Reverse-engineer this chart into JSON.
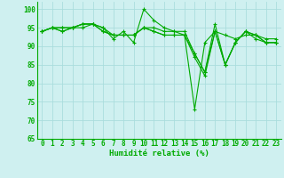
{
  "xlabel": "Humidité relative (%)",
  "xlim": [
    -0.5,
    23.5
  ],
  "ylim": [
    65,
    102
  ],
  "yticks": [
    65,
    70,
    75,
    80,
    85,
    90,
    95,
    100
  ],
  "xticks": [
    0,
    1,
    2,
    3,
    4,
    5,
    6,
    7,
    8,
    9,
    10,
    11,
    12,
    13,
    14,
    15,
    16,
    17,
    18,
    19,
    20,
    21,
    22,
    23
  ],
  "background_color": "#cff0f0",
  "grid_color": "#aadddd",
  "line_color": "#00aa00",
  "series": [
    [
      94,
      95,
      94,
      95,
      96,
      96,
      95,
      92,
      94,
      91,
      100,
      97,
      95,
      94,
      94,
      88,
      83,
      96,
      85,
      91,
      94,
      93,
      91,
      91
    ],
    [
      94,
      95,
      95,
      95,
      95,
      96,
      94,
      93,
      93,
      93,
      95,
      94,
      93,
      93,
      93,
      87,
      82,
      94,
      93,
      92,
      93,
      93,
      92,
      92
    ],
    [
      94,
      95,
      94,
      95,
      96,
      96,
      94,
      93,
      93,
      93,
      95,
      94,
      93,
      93,
      93,
      73,
      91,
      94,
      85,
      91,
      94,
      93,
      91,
      91
    ],
    [
      94,
      95,
      95,
      95,
      96,
      96,
      95,
      93,
      93,
      93,
      95,
      95,
      94,
      94,
      93,
      88,
      83,
      94,
      85,
      91,
      94,
      92,
      91,
      91
    ]
  ],
  "tick_fontsize": 5.5,
  "xlabel_fontsize": 6.5,
  "linewidth": 0.8,
  "markersize": 3.0
}
